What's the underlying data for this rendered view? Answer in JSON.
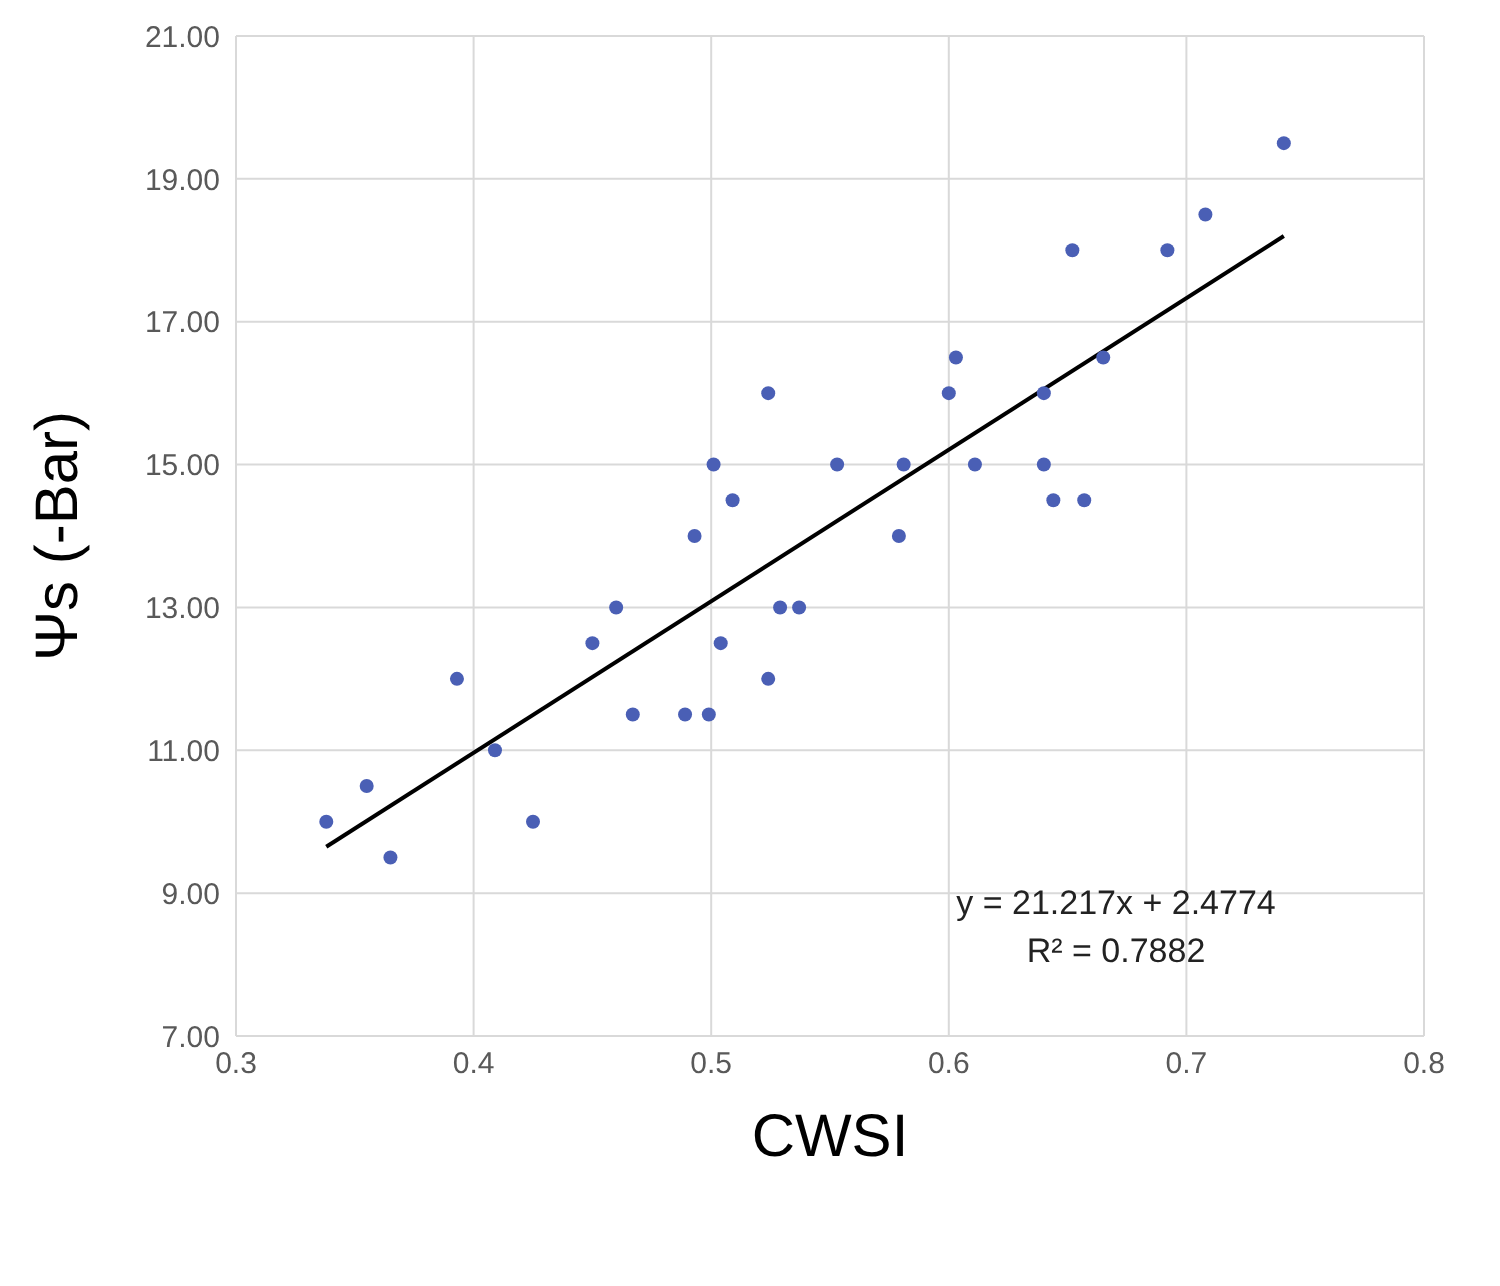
{
  "chart_data": {
    "type": "scatter",
    "xlabel": "CWSI",
    "ylabel": "Ψs (-Bar)",
    "xlim": [
      0.3,
      0.8
    ],
    "xticks": [
      0.3,
      0.4,
      0.5,
      0.6,
      0.7,
      0.8
    ],
    "ylim": [
      7,
      21
    ],
    "yticks": [
      {
        "value": 7,
        "label": "7.00"
      },
      {
        "value": 9,
        "label": "9.00"
      },
      {
        "value": 11,
        "label": "11.00"
      },
      {
        "value": 13,
        "label": "13.00"
      },
      {
        "value": 15,
        "label": "15.00"
      },
      {
        "value": 17,
        "label": "17.00"
      },
      {
        "value": 19,
        "label": "19.00"
      },
      {
        "value": 21,
        "label": "21.00"
      }
    ],
    "grid": true,
    "marker": "circle",
    "series": [
      {
        "color": "#4a5fb5",
        "x": [
          0.338,
          0.355,
          0.365,
          0.393,
          0.409,
          0.425,
          0.45,
          0.46,
          0.467,
          0.489,
          0.499,
          0.493,
          0.501,
          0.509,
          0.504,
          0.524,
          0.524,
          0.529,
          0.537,
          0.553,
          0.579,
          0.581,
          0.6,
          0.603,
          0.611,
          0.64,
          0.64,
          0.644,
          0.657,
          0.665,
          0.652,
          0.692,
          0.708,
          0.741
        ],
        "values": [
          10,
          10.5,
          9.5,
          12,
          11,
          10,
          12.5,
          13,
          11.5,
          11.5,
          11.5,
          14,
          15,
          14.5,
          12.5,
          16,
          12,
          13,
          13,
          15,
          14,
          15,
          16,
          16.5,
          15,
          16,
          15,
          14.5,
          14.5,
          16.5,
          18,
          18,
          18.5,
          19.5
        ]
      },
      {
        "type": "line",
        "color": "#000000",
        "line_style": "solid",
        "marker": "none",
        "x": [
          0.338,
          0.741
        ],
        "values": [
          9.65,
          18.2
        ]
      }
    ],
    "annotations": [
      "y = 21.217x + 2.4774",
      "R² = 0.7882"
    ]
  }
}
